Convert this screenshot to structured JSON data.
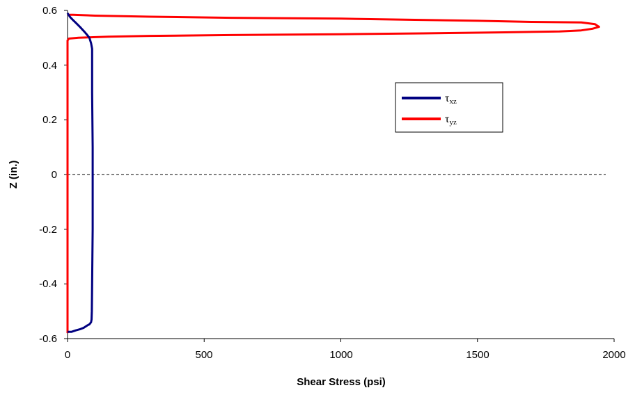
{
  "chart_data": {
    "type": "line",
    "xlabel": "Shear Stress (psi)",
    "ylabel": "Z (in.)",
    "xlim": [
      0,
      2000
    ],
    "ylim": [
      -0.6,
      0.6
    ],
    "x_ticks": [
      "0",
      "500",
      "1000",
      "1500",
      "2000"
    ],
    "y_ticks": [
      "0.6",
      "0.4",
      "0.2",
      "0",
      "-0.2",
      "-0.4",
      "-0.6"
    ],
    "zero_line": {
      "y": 0,
      "style": "dashed"
    },
    "legend": {
      "placement": "right-center"
    },
    "series": [
      {
        "name": "τxz",
        "label_main": "τ",
        "label_sub": "xz",
        "color": "#000080",
        "points": [
          [
            0,
            -0.575
          ],
          [
            15,
            -0.575
          ],
          [
            30,
            -0.57
          ],
          [
            45,
            -0.566
          ],
          [
            60,
            -0.56
          ],
          [
            72,
            -0.552
          ],
          [
            80,
            -0.548
          ],
          [
            86,
            -0.54
          ],
          [
            88,
            -0.53
          ],
          [
            89,
            -0.5
          ],
          [
            90,
            -0.4
          ],
          [
            91,
            -0.3
          ],
          [
            92,
            -0.2
          ],
          [
            92,
            -0.1
          ],
          [
            92,
            0.0
          ],
          [
            92,
            0.1
          ],
          [
            91,
            0.2
          ],
          [
            90,
            0.3
          ],
          [
            90,
            0.4
          ],
          [
            90,
            0.46
          ],
          [
            86,
            0.48
          ],
          [
            80,
            0.5
          ],
          [
            72,
            0.51
          ],
          [
            62,
            0.522
          ],
          [
            50,
            0.535
          ],
          [
            40,
            0.545
          ],
          [
            30,
            0.555
          ],
          [
            20,
            0.565
          ],
          [
            10,
            0.575
          ],
          [
            3,
            0.585
          ],
          [
            0,
            0.59
          ]
        ]
      },
      {
        "name": "τyz",
        "label_main": "τ",
        "label_sub": "yz",
        "color": "#ff0000",
        "points": [
          [
            0,
            -0.58
          ],
          [
            0,
            0.0
          ],
          [
            0,
            0.49
          ],
          [
            5,
            0.497
          ],
          [
            40,
            0.5
          ],
          [
            150,
            0.504
          ],
          [
            300,
            0.507
          ],
          [
            600,
            0.51
          ],
          [
            1000,
            0.513
          ],
          [
            1300,
            0.516
          ],
          [
            1600,
            0.52
          ],
          [
            1800,
            0.523
          ],
          [
            1880,
            0.527
          ],
          [
            1920,
            0.533
          ],
          [
            1945,
            0.54
          ],
          [
            1930,
            0.55
          ],
          [
            1880,
            0.556
          ],
          [
            1700,
            0.558
          ],
          [
            1500,
            0.562
          ],
          [
            1250,
            0.566
          ],
          [
            1000,
            0.57
          ],
          [
            600,
            0.573
          ],
          [
            300,
            0.577
          ],
          [
            100,
            0.581
          ],
          [
            20,
            0.584
          ],
          [
            0,
            0.584
          ]
        ]
      }
    ]
  }
}
